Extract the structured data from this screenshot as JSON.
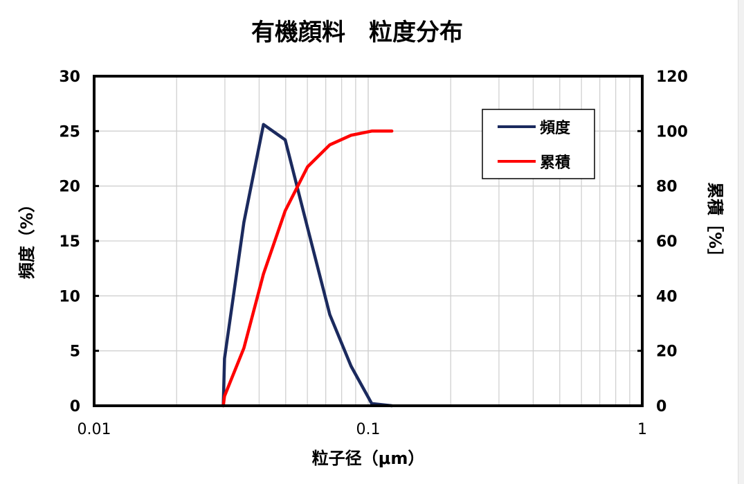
{
  "chart_data": {
    "type": "line",
    "title": "有機顔料　粒度分布",
    "xlabel": "粒子径（μm）",
    "ylabel": "頻度（%）",
    "y2label": "累積［%］",
    "x_scale": "log",
    "xlim": [
      0.01,
      1
    ],
    "ylim": [
      0,
      30
    ],
    "y2lim": [
      0,
      120
    ],
    "x_ticks": [
      "0.01",
      "0.1",
      "1"
    ],
    "y_ticks": [
      "0",
      "5",
      "10",
      "15",
      "20",
      "25",
      "30"
    ],
    "y2_ticks": [
      "0",
      "20",
      "40",
      "60",
      "80",
      "100",
      "120"
    ],
    "grid": true,
    "legend_position": "top-right",
    "series": [
      {
        "name": "頻度",
        "axis": "left",
        "color": "#1b2a5e",
        "x": [
          0.0296,
          0.0299,
          0.0352,
          0.0415,
          0.0498,
          0.0601,
          0.0724,
          0.0866,
          0.103,
          0.122
        ],
        "y": [
          0,
          4.3,
          16.7,
          25.6,
          24.2,
          16.2,
          8.3,
          3.6,
          0.2,
          0
        ]
      },
      {
        "name": "累積",
        "axis": "right",
        "color": "#ff0000",
        "x": [
          0.0296,
          0.0299,
          0.0352,
          0.0415,
          0.0498,
          0.0601,
          0.0724,
          0.0866,
          0.103,
          0.122
        ],
        "y": [
          0,
          3.5,
          21,
          48,
          71,
          87,
          95,
          98.5,
          100,
          100
        ]
      }
    ]
  }
}
